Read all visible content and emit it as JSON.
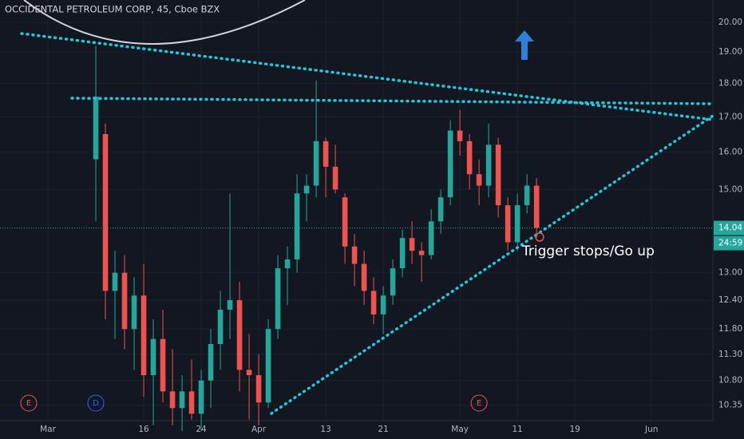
{
  "chart_data": {
    "type": "candlestick",
    "title": "OCCIDENTAL PETROLEUM CORP, 45, Cboe BZX",
    "log_scale": true,
    "up_color": "#26a69a",
    "down_color": "#ef5350",
    "x": [
      5,
      6,
      7,
      8,
      9,
      10,
      11,
      12,
      13,
      14,
      15,
      16,
      17,
      18,
      19,
      20,
      21,
      22,
      23,
      24,
      25,
      26,
      27,
      28,
      29,
      30,
      31,
      32,
      33,
      34,
      35,
      36,
      37,
      38,
      39,
      40,
      41,
      42,
      43,
      44,
      45,
      46,
      47,
      48,
      49,
      50,
      51
    ],
    "open": [
      15.8,
      16.5,
      12.6,
      13.0,
      11.8,
      12.5,
      10.9,
      11.6,
      10.6,
      10.3,
      10.6,
      10.2,
      10.8,
      11.5,
      12.2,
      12.4,
      11.0,
      10.9,
      10.4,
      11.8,
      13.1,
      13.3,
      14.9,
      15.1,
      16.3,
      15.6,
      14.8,
      13.6,
      13.2,
      12.6,
      12.1,
      12.5,
      13.1,
      13.8,
      13.5,
      13.4,
      14.2,
      14.8,
      16.6,
      16.3,
      15.4,
      15.1,
      16.2,
      14.6,
      13.7,
      14.6,
      15.1
    ],
    "high": [
      19.2,
      16.8,
      13.5,
      13.4,
      12.9,
      13.2,
      12.0,
      12.2,
      11.4,
      10.9,
      11.2,
      11.0,
      11.8,
      12.6,
      14.9,
      12.8,
      11.7,
      11.3,
      12.0,
      13.4,
      13.6,
      15.4,
      15.4,
      18.1,
      16.4,
      16.2,
      14.9,
      13.9,
      13.5,
      12.9,
      12.7,
      13.3,
      14.0,
      14.2,
      13.7,
      14.5,
      15.0,
      16.9,
      17.2,
      16.5,
      15.8,
      16.8,
      16.4,
      14.8,
      14.9,
      15.4,
      15.3
    ],
    "low": [
      14.2,
      12.0,
      11.6,
      11.4,
      11.0,
      10.5,
      10.0,
      10.4,
      10.0,
      9.9,
      10.1,
      9.9,
      10.3,
      11.0,
      11.6,
      10.6,
      10.1,
      10.0,
      10.3,
      11.6,
      12.3,
      13.0,
      14.2,
      14.8,
      14.8,
      14.9,
      13.2,
      12.7,
      12.3,
      11.9,
      11.7,
      12.3,
      12.9,
      13.2,
      12.8,
      13.3,
      13.9,
      14.6,
      15.9,
      15.0,
      14.6,
      14.8,
      14.3,
      13.5,
      13.5,
      14.4,
      13.8
    ],
    "close": [
      17.6,
      12.6,
      13.0,
      11.8,
      12.5,
      10.9,
      11.6,
      10.6,
      10.3,
      10.6,
      10.2,
      10.8,
      11.5,
      12.2,
      12.4,
      11.0,
      10.9,
      10.4,
      11.8,
      13.1,
      13.3,
      14.9,
      15.1,
      16.3,
      15.6,
      15.0,
      13.6,
      13.2,
      12.6,
      12.1,
      12.5,
      13.1,
      13.8,
      13.5,
      13.4,
      14.2,
      14.8,
      16.6,
      16.3,
      15.4,
      15.1,
      16.2,
      14.6,
      13.7,
      14.6,
      15.1,
      14.04
    ],
    "ylim": [
      10.08,
      20.78
    ],
    "xlim": [
      -5,
      69.4
    ],
    "yticks": [
      10.35,
      {
        "value": 10.8,
        "label": "10.80"
      },
      {
        "value": 11.3,
        "label": "11.30"
      },
      {
        "value": 11.8,
        "label": "11.80"
      },
      {
        "value": 12.4,
        "label": "12.40"
      },
      {
        "value": 13,
        "label": "13.00"
      },
      {
        "value": 15,
        "label": "15.00"
      },
      {
        "value": 16,
        "label": "16.00"
      },
      {
        "value": 17,
        "label": "17.00"
      },
      {
        "value": 18,
        "label": "18.00"
      },
      {
        "value": 19,
        "label": "19.00"
      },
      {
        "value": 20,
        "label": "20.00"
      }
    ],
    "xticks": [
      {
        "value": 0,
        "label": "Mar"
      },
      {
        "value": 10,
        "label": "16"
      },
      {
        "value": 16,
        "label": "24"
      },
      {
        "value": 22,
        "label": "Apr"
      },
      {
        "value": 29,
        "label": "13"
      },
      {
        "value": 35,
        "label": "21"
      },
      {
        "value": 43,
        "label": "May"
      },
      {
        "value": 49,
        "label": "11"
      },
      {
        "value": 55,
        "label": "19"
      },
      {
        "value": 63,
        "label": "Jun"
      }
    ],
    "grid": true,
    "last_price": {
      "value": 14.04,
      "label": "14.04",
      "countdown": "24:59"
    },
    "events": [
      {
        "x": -2,
        "label": "E",
        "color": "#ef5350"
      },
      {
        "x": 5,
        "label": "D",
        "color": "#2962ff"
      },
      {
        "x": 45,
        "label": "E",
        "color": "#ef5350"
      }
    ],
    "annotation": "Trigger stops/Go up"
  }
}
